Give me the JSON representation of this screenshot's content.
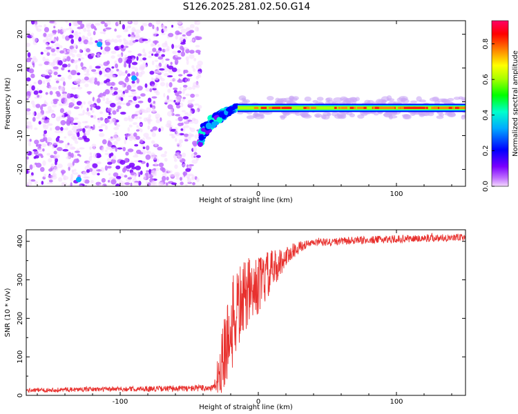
{
  "title": "S126.2025.281.02.50.G14",
  "colors": {
    "background": "#ffffff",
    "axis": "#000000",
    "snr_line": "#e8312e",
    "noise_scatter": "#7a20e0",
    "noise_light": "#c9a6f5"
  },
  "chart_data": [
    {
      "type": "heatmap",
      "title": "S126.2025.281.02.50.G14",
      "xlabel": "Height of straight line (km)",
      "ylabel": "Frequency (Hz)",
      "xlim": [
        -168,
        150
      ],
      "ylim": [
        -25,
        24
      ],
      "xticks": [
        -100,
        0,
        100
      ],
      "yticks": [
        -20,
        -10,
        0,
        10,
        20
      ],
      "colorbar": {
        "label": "Normalized spectral amplitude",
        "range": [
          0.0,
          0.93
        ],
        "ticks": [
          0.0,
          0.2,
          0.4,
          0.6,
          0.8
        ],
        "colormap": "rainbow (magenta-blue-cyan-green-yellow-red)"
      },
      "features": {
        "noise_region_x": [
          -168,
          -42
        ],
        "transition_x": [
          -42,
          -15
        ],
        "transition_freq_start_hz": -12,
        "transition_freq_end_hz": -1.5,
        "stable_line_x": [
          -15,
          150
        ],
        "stable_line_freq_hz": -1.8,
        "stable_line_amplitude": 0.85
      }
    },
    {
      "type": "line",
      "xlabel": "Height of straight line (km)",
      "ylabel": "SNR (10 * v/v)",
      "xlim": [
        -168,
        150
      ],
      "ylim": [
        0,
        430
      ],
      "xticks": [
        -100,
        0,
        100
      ],
      "yticks": [
        0,
        100,
        200,
        300,
        400
      ],
      "series": [
        {
          "name": "SNR",
          "color": "#e8312e",
          "x": [
            -168,
            -140,
            -110,
            -80,
            -50,
            -32,
            -28,
            -24,
            -20,
            -16,
            -12,
            -8,
            -4,
            0,
            4,
            8,
            12,
            16,
            20,
            25,
            30,
            35,
            40,
            50,
            60,
            70,
            80,
            90,
            100,
            110,
            120,
            130,
            140,
            150
          ],
          "y": [
            13,
            15,
            16,
            17,
            18,
            20,
            60,
            120,
            170,
            215,
            245,
            260,
            275,
            285,
            300,
            315,
            330,
            345,
            360,
            375,
            385,
            392,
            396,
            398,
            400,
            402,
            403,
            405,
            406,
            407,
            408,
            409,
            410,
            410
          ],
          "noise_amplitude": [
            5,
            6,
            6,
            7,
            8,
            10,
            60,
            110,
            120,
            120,
            100,
            90,
            80,
            75,
            70,
            60,
            50,
            35,
            25,
            20,
            15,
            10,
            10,
            10,
            10,
            10,
            10,
            10,
            10,
            10,
            10,
            10,
            10,
            10
          ]
        }
      ]
    }
  ]
}
